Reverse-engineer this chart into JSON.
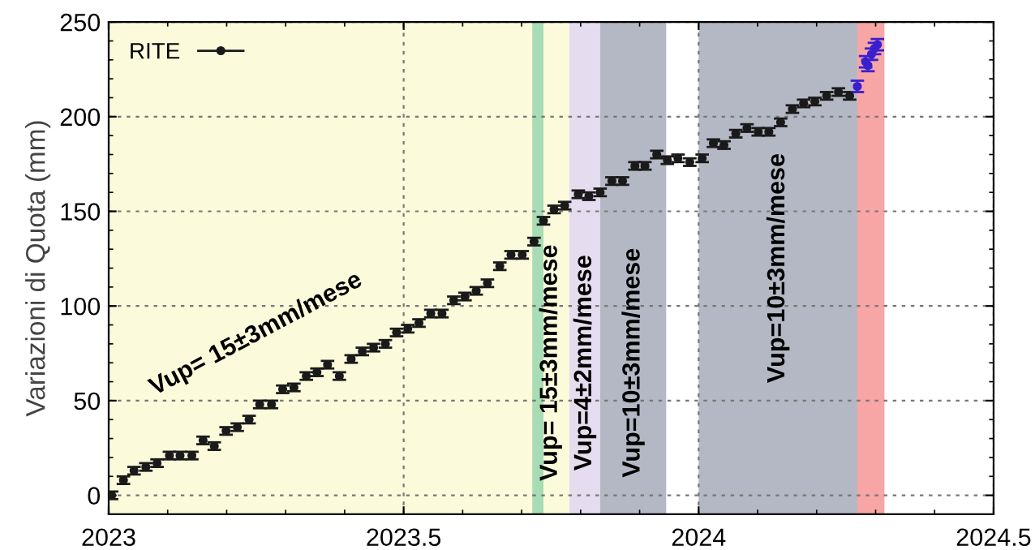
{
  "chart_data": {
    "type": "scatter",
    "ylabel": "Variazioni di Quota (mm)",
    "xlim": [
      2023,
      2024.5
    ],
    "xticks": [
      2023,
      2023.5,
      2024,
      2024.5
    ],
    "ylim": [
      -10,
      250
    ],
    "yticks": [
      0,
      50,
      100,
      150,
      200,
      250
    ],
    "grid": true,
    "legend": "top left",
    "marker": "circle",
    "series": [
      {
        "name": "RITE",
        "color": "#1a1a1a",
        "x": [
          2023.005,
          2023.025,
          2023.043,
          2023.063,
          2023.082,
          2023.103,
          2023.121,
          2023.141,
          2023.16,
          2023.179,
          2023.199,
          2023.218,
          2023.238,
          2023.256,
          2023.276,
          2023.295,
          2023.314,
          2023.335,
          2023.353,
          2023.371,
          2023.391,
          2023.411,
          2023.43,
          2023.449,
          2023.469,
          2023.488,
          2023.507,
          2023.526,
          2023.546,
          2023.565,
          2023.585,
          2023.604,
          2023.623,
          2023.642,
          2023.663,
          2023.682,
          2023.701,
          2023.721,
          2023.737,
          2023.755,
          2023.773,
          2023.796,
          2023.814,
          2023.833,
          2023.853,
          2023.871,
          2023.892,
          2023.909,
          2023.929,
          2023.947,
          2023.965,
          2023.985,
          2024.006,
          2024.025,
          2024.043,
          2024.063,
          2024.082,
          2024.101,
          2024.119,
          2024.139,
          2024.159,
          2024.178,
          2024.197,
          2024.217,
          2024.237,
          2024.256
        ],
        "values": [
          0,
          8,
          13,
          15,
          17,
          21,
          21,
          21,
          29,
          26,
          34,
          36,
          40,
          48,
          48,
          56,
          57,
          63,
          65,
          69,
          63,
          72,
          76,
          78,
          80,
          86,
          88,
          91,
          96,
          96,
          103,
          105,
          108,
          112,
          121,
          127,
          127,
          134,
          145,
          151,
          153,
          159,
          158,
          160,
          166,
          166,
          174,
          174,
          180,
          177,
          178,
          176,
          178,
          186,
          185,
          191,
          194,
          192,
          192,
          197,
          204,
          207,
          208,
          211,
          213,
          211
        ],
        "errors": [
          2,
          2,
          2,
          2,
          2,
          2,
          2,
          2,
          2,
          2,
          2,
          2,
          2,
          2,
          2,
          2,
          2,
          2,
          2,
          2,
          2,
          2,
          2,
          2,
          2,
          2,
          2,
          2,
          2,
          2,
          2,
          2,
          2,
          2,
          2,
          2,
          2,
          2,
          2,
          2,
          2,
          2,
          2,
          2,
          2,
          2,
          2,
          2,
          2,
          2,
          2,
          2,
          2,
          2,
          2,
          2,
          2,
          2,
          2,
          2,
          2,
          2,
          2,
          2,
          2,
          2
        ]
      },
      {
        "color": "#3a1fd0",
        "x": [
          2024.269,
          2024.279,
          2024.283,
          2024.287,
          2024.293,
          2024.298,
          2024.303
        ],
        "values": [
          216,
          null,
          229,
          227,
          233,
          236,
          238
        ],
        "errors": [
          3,
          null,
          3,
          3,
          3,
          3,
          3
        ]
      }
    ],
    "bands": [
      {
        "axis": "x",
        "from": 2023,
        "to": 2023.781,
        "label": "Vup= 15±3mm/mese",
        "color": "#fbfbdc"
      },
      {
        "axis": "x",
        "from": 2023.718,
        "to": 2023.737,
        "label": "Vup= 15±3mm/mese",
        "color": "#a8dcb5"
      },
      {
        "axis": "x",
        "from": 2023.781,
        "to": 2023.833,
        "label": "Vup=4±2mm/mese",
        "color": "#e6dcef"
      },
      {
        "axis": "x",
        "from": 2023.833,
        "to": 2023.945,
        "label": "Vup=10±3mm/mese",
        "color": "#b4b8c4"
      },
      {
        "axis": "x",
        "from": 2024.0,
        "to": 2024.269,
        "label": "Vup=10±3mm/mese",
        "color": "#b4b8c4"
      },
      {
        "axis": "x",
        "from": 2024.269,
        "to": 2024.315,
        "color": "#f7a5a5"
      }
    ]
  }
}
